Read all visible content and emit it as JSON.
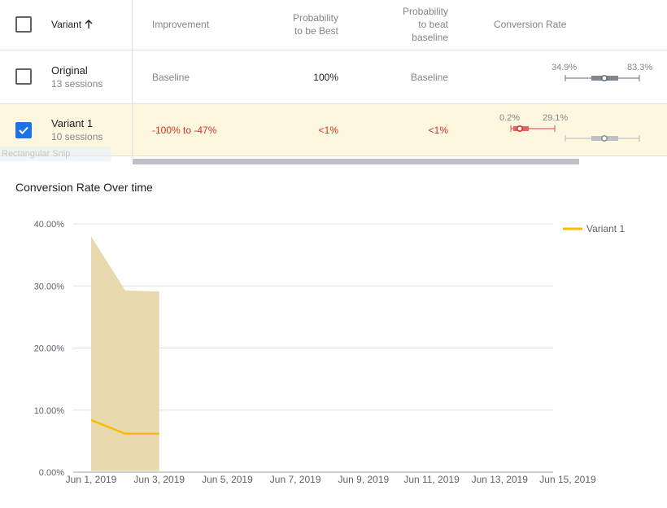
{
  "table": {
    "headers": {
      "variant": "Variant",
      "improvement": "Improvement",
      "prob_best": [
        "Probability",
        "to be Best"
      ],
      "prob_beat": [
        "Probability",
        "to beat",
        "baseline"
      ],
      "conversion": "Conversion Rate"
    },
    "rows": [
      {
        "name": "Original",
        "sessions": "13 sessions",
        "improvement": "Baseline",
        "prob_best": "100%",
        "prob_beat": "Baseline",
        "ci_low": "34.9%",
        "ci_high": "83.3%",
        "checked": false
      },
      {
        "name": "Variant 1",
        "sessions": "10 sessions",
        "improvement": "-100% to -47%",
        "prob_best": "<1%",
        "prob_beat": "<1%",
        "ci_low": "0.2%",
        "ci_high": "29.1%",
        "checked": true
      }
    ]
  },
  "overlay": {
    "snip_label": "Rectangular Snip"
  },
  "chart": {
    "title": "Conversion Rate Over time"
  },
  "colors": {
    "accent": "#fbbc04",
    "band": "#e8d9ae",
    "negative": "#d93025",
    "checkbox": "#1a73e8",
    "row_highlight": "#fef7e0"
  },
  "chart_data": {
    "type": "line",
    "title": "Conversion Rate Over time",
    "xlabel": "",
    "ylabel": "",
    "x_ticks": [
      "Jun 1, 2019",
      "Jun 3, 2019",
      "Jun 5, 2019",
      "Jun 7, 2019",
      "Jun 9, 2019",
      "Jun 11, 2019",
      "Jun 13, 2019",
      "Jun 15, 2019"
    ],
    "y_ticks": [
      "40.00%",
      "30.00%",
      "20.00%",
      "10.00%",
      "0.00%"
    ],
    "ylim": [
      0,
      40
    ],
    "xlim": [
      "2019-06-01",
      "2019-06-15"
    ],
    "legend_position": "top-right",
    "grid": true,
    "series": [
      {
        "name": "Variant 1",
        "x": [
          "2019-06-01",
          "2019-06-02",
          "2019-06-03"
        ],
        "values": [
          8.4,
          6.2,
          6.2
        ],
        "band_low": [
          0.2,
          0.2,
          0.2
        ],
        "band_high": [
          38.0,
          29.3,
          29.1
        ]
      }
    ]
  }
}
